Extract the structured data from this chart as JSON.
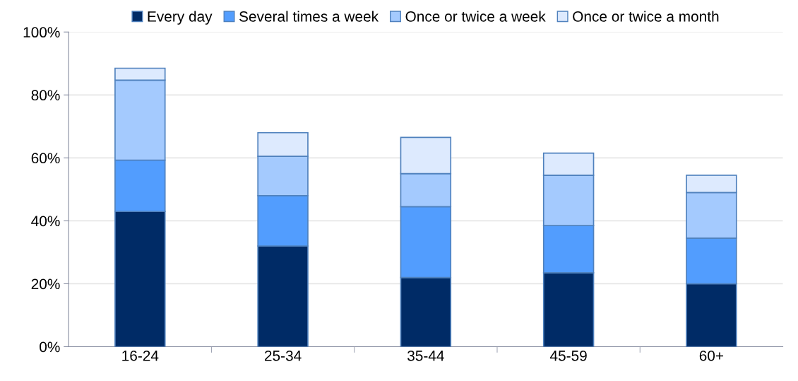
{
  "chart_data": {
    "type": "bar",
    "stacked": true,
    "categories": [
      "16-24",
      "25-34",
      "35-44",
      "45-59",
      "60+"
    ],
    "series": [
      {
        "name": "Every day",
        "color": "#002b66",
        "values": [
          43,
          32,
          22,
          23.5,
          20
        ]
      },
      {
        "name": "Several times a week",
        "color": "#529dfe",
        "values": [
          16.3,
          16,
          22.5,
          15,
          14.5
        ]
      },
      {
        "name": "Once or twice a week",
        "color": "#a4cafe",
        "values": [
          25.4,
          12.5,
          10.5,
          16,
          14.5
        ]
      },
      {
        "name": "Once or twice a month",
        "color": "#ddeafe",
        "values": [
          3.8,
          7.5,
          11.5,
          7,
          5.5
        ]
      }
    ],
    "ylim": [
      0,
      100
    ],
    "yticks": [
      {
        "value": 0,
        "label": "0%"
      },
      {
        "value": 20,
        "label": "20%"
      },
      {
        "value": 40,
        "label": "40%"
      },
      {
        "value": 60,
        "label": "60%"
      },
      {
        "value": 80,
        "label": "80%"
      },
      {
        "value": 100,
        "label": "100%"
      }
    ],
    "grid": "y",
    "legend": "top"
  }
}
